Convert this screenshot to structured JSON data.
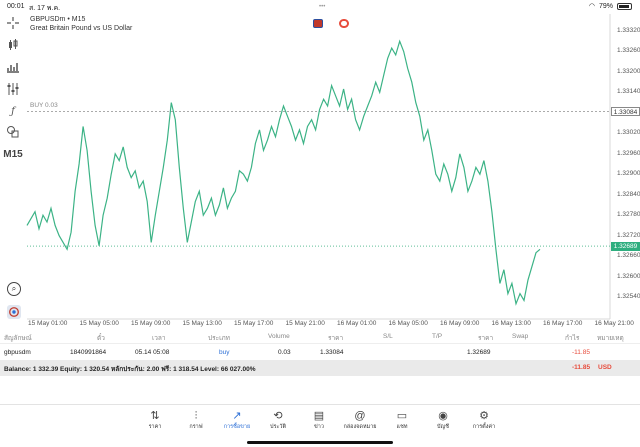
{
  "status": {
    "time": "00:01",
    "date": "ส. 17 พ.ค.",
    "battery": "79%"
  },
  "header": {
    "symbol": "GBPUSDm • M15",
    "description": "Great Britain Pound vs US Dollar"
  },
  "toolbar": {
    "timeframe": "M15"
  },
  "chart_data": {
    "type": "line",
    "color": "#3cb386",
    "ylim": [
      1.25,
      1.334
    ],
    "y_ticks": [
      "1.33320",
      "1.33260",
      "1.33200",
      "1.33140",
      "1.33084",
      "1.33020",
      "1.32960",
      "1.32900",
      "1.32840",
      "1.32780",
      "1.32720",
      "1.32689",
      "1.32660",
      "1.32600",
      "1.32540"
    ],
    "x_labels": [
      "15 May 01:00",
      "15 May 05:00",
      "15 May 09:00",
      "15 May 13:00",
      "15 May 17:00",
      "15 May 21:00",
      "16 May 01:00",
      "16 May 05:00",
      "16 May 09:00",
      "16 May 13:00",
      "16 May 17:00",
      "16 May 21:00"
    ],
    "buy_line": {
      "label": "BUY 0.03",
      "price": "1.33084"
    },
    "bid_line": {
      "price": "1.32689"
    },
    "values": [
      1.3275,
      1.3277,
      1.3279,
      1.3274,
      1.3278,
      1.3276,
      1.328,
      1.3275,
      1.3272,
      1.327,
      1.3268,
      1.3273,
      1.3285,
      1.3293,
      1.3304,
      1.3297,
      1.3285,
      1.3275,
      1.3269,
      1.3278,
      1.3283,
      1.329,
      1.3296,
      1.3294,
      1.3298,
      1.3292,
      1.3289,
      1.3291,
      1.3286,
      1.3288,
      1.3282,
      1.327,
      1.3278,
      1.3285,
      1.3292,
      1.33,
      1.3311,
      1.3306,
      1.3292,
      1.328,
      1.327,
      1.3276,
      1.3282,
      1.3285,
      1.3278,
      1.328,
      1.3283,
      1.3278,
      1.3281,
      1.3286,
      1.328,
      1.3283,
      1.3285,
      1.3291,
      1.329,
      1.3288,
      1.3292,
      1.3299,
      1.3303,
      1.3297,
      1.33,
      1.3304,
      1.3301,
      1.3306,
      1.331,
      1.3307,
      1.3304,
      1.33,
      1.3303,
      1.3299,
      1.3304,
      1.3306,
      1.3303,
      1.3309,
      1.3312,
      1.331,
      1.3316,
      1.3313,
      1.331,
      1.3315,
      1.3309,
      1.3312,
      1.3306,
      1.3303,
      1.3307,
      1.331,
      1.3313,
      1.3317,
      1.3314,
      1.3319,
      1.3324,
      1.3327,
      1.3325,
      1.3329,
      1.3326,
      1.3321,
      1.3317,
      1.3311,
      1.3307,
      1.33,
      1.3303,
      1.3297,
      1.329,
      1.3288,
      1.3293,
      1.329,
      1.3285,
      1.3289,
      1.3296,
      1.3292,
      1.3285,
      1.3288,
      1.3292,
      1.329,
      1.3294,
      1.3288,
      1.3279,
      1.3268,
      1.3258,
      1.3262,
      1.3255,
      1.3258,
      1.3252,
      1.3255,
      1.3253,
      1.3259,
      1.3263,
      1.3267,
      1.3268
    ]
  },
  "price_labels": {
    "buy": "1.33084",
    "bid": "1.32689"
  },
  "table": {
    "headers": [
      "สัญลักษณ์",
      "ตั๋ว",
      "เวลา",
      "ประเภท",
      "Volume",
      "ราคา",
      "S/L",
      "T/P",
      "ราคา",
      "Swap",
      "กำไร",
      "หมายเหตุ"
    ],
    "row": {
      "symbol": "gbpusdm",
      "ticket": "1840991864",
      "time": "05.14 05:08",
      "type": "buy",
      "volume": "0.03",
      "open_price": "1.33084",
      "sl": "",
      "tp": "",
      "current_price": "1.32689",
      "swap": "",
      "profit": "-11.85",
      "comment": ""
    }
  },
  "balance": {
    "text": "Balance: 1 332.39 Equity: 1 320.54 หลักประกัน: 2.00 ฟรี: 1 318.54 Level: 66 027.00%",
    "profit": "-11.85",
    "currency": "USD"
  },
  "tabs": [
    {
      "label": "ราคา",
      "icon": "⇅"
    },
    {
      "label": "กราฟ",
      "icon": "⫶"
    },
    {
      "label": "การซื้อขาย",
      "icon": "↗"
    },
    {
      "label": "ประวัติ",
      "icon": "⟲"
    },
    {
      "label": "ข่าว",
      "icon": "▤"
    },
    {
      "label": "กล่องจดหมาย",
      "icon": "@"
    },
    {
      "label": "แชท",
      "icon": "▭"
    },
    {
      "label": "บัญชี",
      "icon": "◉"
    },
    {
      "label": "การตั้งค่า",
      "icon": "⚙"
    }
  ]
}
